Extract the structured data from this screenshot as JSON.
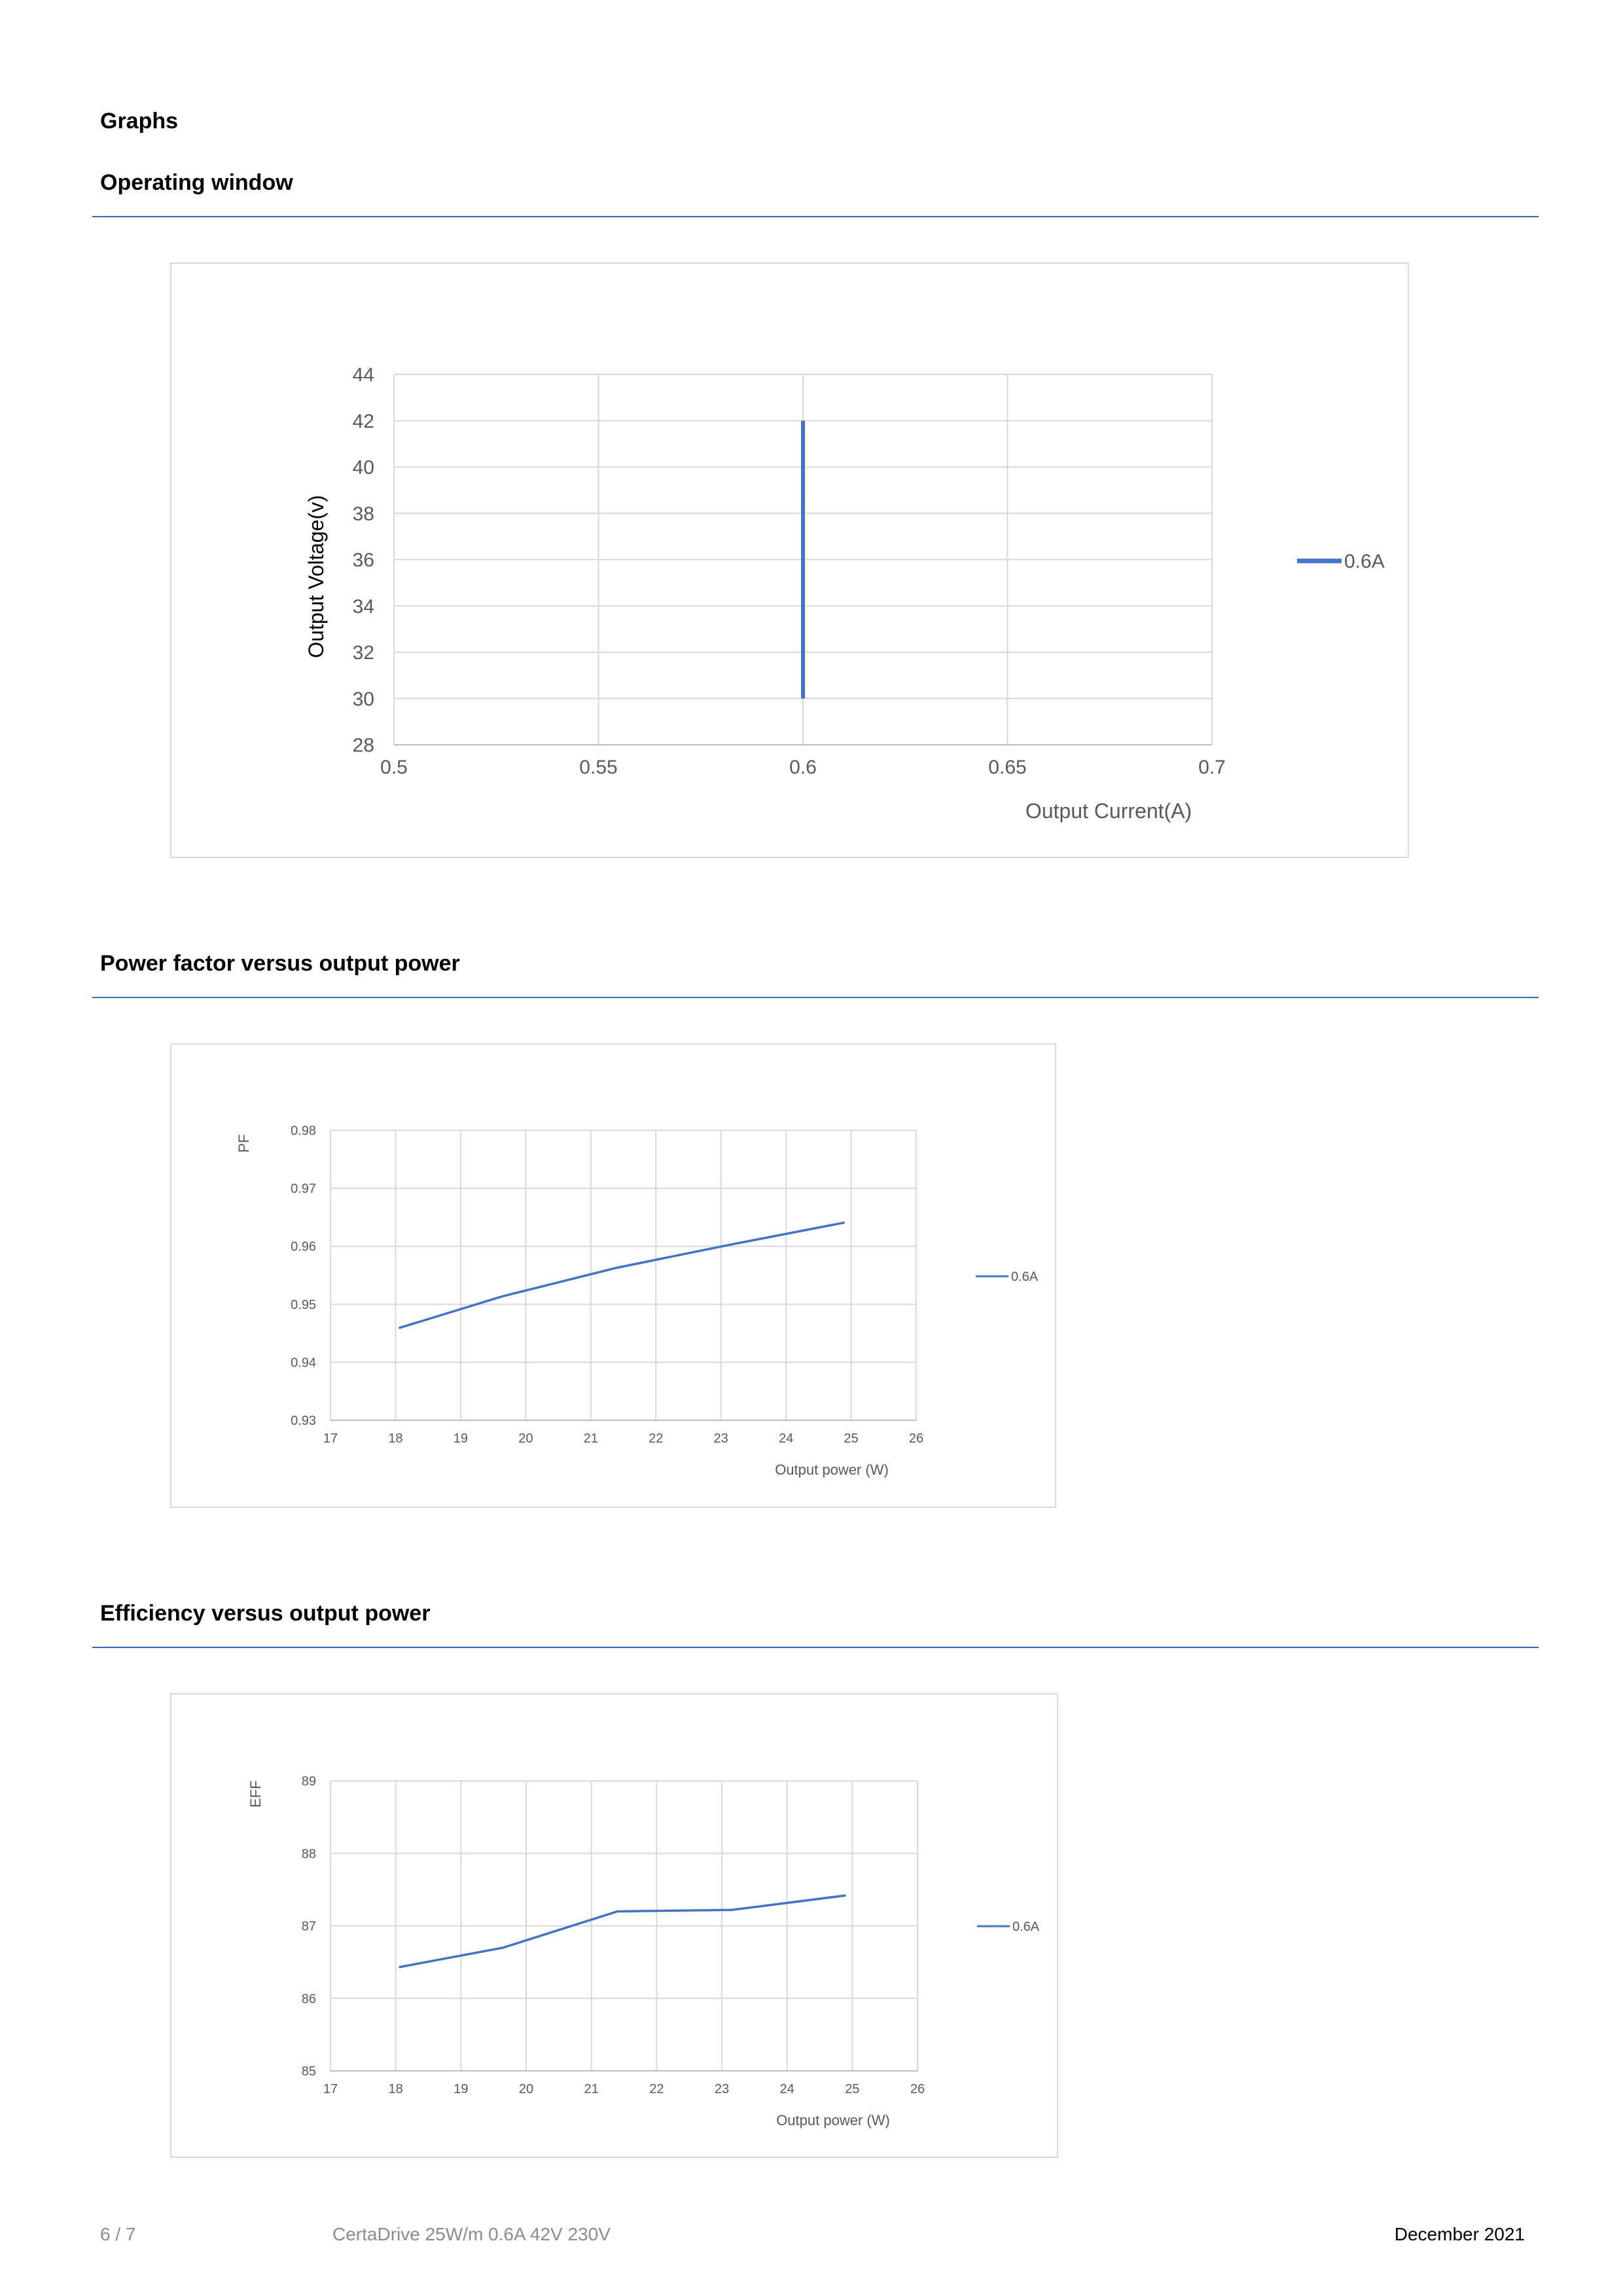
{
  "section_title": "Graphs",
  "sections": [
    {
      "title": "Operating window",
      "chart_data": {
        "type": "line",
        "xlabel": "Output Current(A)",
        "ylabel": "Output Voltage(v)",
        "xlim": [
          0.5,
          0.7
        ],
        "ylim": [
          28,
          44
        ],
        "x_ticks": [
          "0.5",
          "0.55",
          "0.6",
          "0.65",
          "0.7"
        ],
        "y_ticks": [
          "28",
          "30",
          "32",
          "34",
          "36",
          "38",
          "40",
          "42",
          "44"
        ],
        "grid": true,
        "legend": "right",
        "series": [
          {
            "name": "0.6A",
            "color": "#4472c4",
            "points": [
              [
                0.6,
                30
              ],
              [
                0.6,
                42
              ]
            ]
          }
        ]
      }
    },
    {
      "title": "Power factor versus output power",
      "chart_data": {
        "type": "line",
        "xlabel": "Output power (W)",
        "ylabel": "PF",
        "xlim": [
          17,
          26
        ],
        "ylim": [
          0.93,
          0.98
        ],
        "x_ticks": [
          "17",
          "18",
          "19",
          "20",
          "21",
          "22",
          "23",
          "24",
          "25",
          "26"
        ],
        "y_ticks": [
          "0.93",
          "0.94",
          "0.95",
          "0.96",
          "0.97",
          "0.98"
        ],
        "grid": true,
        "legend": "right",
        "series": [
          {
            "name": "0.6A",
            "color": "#4472c4",
            "points": [
              [
                18.05,
                0.9459
              ],
              [
                19.65,
                0.9514
              ],
              [
                21.4,
                0.9563
              ],
              [
                23.15,
                0.9603
              ],
              [
                24.9,
                0.9641
              ]
            ]
          }
        ]
      }
    },
    {
      "title": "Efficiency versus output power",
      "chart_data": {
        "type": "line",
        "xlabel": "Output power (W)",
        "ylabel": "EFF",
        "xlim": [
          17,
          26
        ],
        "ylim": [
          85,
          89
        ],
        "x_ticks": [
          "17",
          "18",
          "19",
          "20",
          "21",
          "22",
          "23",
          "24",
          "25",
          "26"
        ],
        "y_ticks": [
          "85",
          "86",
          "87",
          "88",
          "89"
        ],
        "grid": true,
        "legend": "right",
        "series": [
          {
            "name": "0.6A",
            "color": "#4472c4",
            "points": [
              [
                18.05,
                86.43
              ],
              [
                19.65,
                86.7
              ],
              [
                21.4,
                87.2
              ],
              [
                23.15,
                87.22
              ],
              [
                24.9,
                87.42
              ]
            ]
          }
        ]
      }
    }
  ],
  "footer": {
    "page": "6 / 7",
    "product": "CertaDrive 25W/m 0.6A 42V 230V",
    "date": "December 2021"
  }
}
